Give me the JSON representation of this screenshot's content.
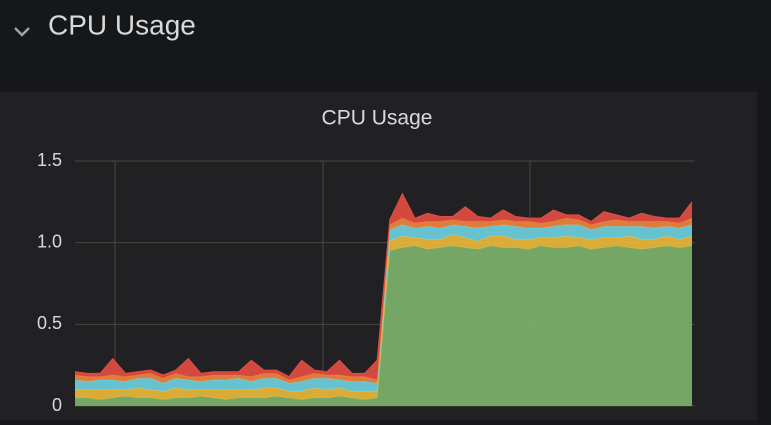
{
  "row": {
    "title": "CPU Usage"
  },
  "chart_data": {
    "type": "stacked-area",
    "title": "CPU Usage",
    "categories": [
      null,
      null,
      null,
      null,
      null,
      null,
      null,
      null,
      null,
      null,
      null,
      null,
      null,
      null,
      null,
      null,
      null,
      null,
      null,
      null,
      null,
      null,
      null,
      null,
      null,
      null,
      null,
      null,
      null,
      null,
      null,
      null,
      null,
      null,
      null,
      null,
      null,
      null,
      null,
      null,
      null,
      null,
      null,
      null,
      null,
      null,
      null,
      null,
      null,
      null
    ],
    "ylim": [
      0,
      1.5
    ],
    "yticks": [
      0,
      0.5,
      {
        "value": 1,
        "label": "1.0"
      },
      1.5
    ],
    "grid": true,
    "series": [
      {
        "color": "#7eb26d",
        "values": [
          0.05,
          0.05,
          0.04,
          0.05,
          0.06,
          0.05,
          0.05,
          0.04,
          0.05,
          0.05,
          0.06,
          0.05,
          0.04,
          0.05,
          0.05,
          0.05,
          0.06,
          0.05,
          0.04,
          0.05,
          0.05,
          0.06,
          0.05,
          0.04,
          0.05,
          0.95,
          0.97,
          0.98,
          0.96,
          0.97,
          0.98,
          0.97,
          0.96,
          0.98,
          0.97,
          0.97,
          0.96,
          0.98,
          0.97,
          0.97,
          0.98,
          0.96,
          0.97,
          0.98,
          0.97,
          0.96,
          0.97,
          0.98,
          0.97,
          0.98
        ]
      },
      {
        "color": "#eab839",
        "values": [
          0.05,
          0.05,
          0.06,
          0.05,
          0.04,
          0.06,
          0.05,
          0.05,
          0.06,
          0.05,
          0.04,
          0.05,
          0.06,
          0.05,
          0.05,
          0.06,
          0.05,
          0.04,
          0.05,
          0.06,
          0.05,
          0.05,
          0.04,
          0.05,
          0.04,
          0.06,
          0.07,
          0.05,
          0.06,
          0.05,
          0.07,
          0.06,
          0.05,
          0.06,
          0.07,
          0.05,
          0.06,
          0.05,
          0.06,
          0.07,
          0.05,
          0.06,
          0.06,
          0.05,
          0.07,
          0.06,
          0.05,
          0.06,
          0.05,
          0.06
        ]
      },
      {
        "color": "#6ed0e0",
        "values": [
          0.06,
          0.05,
          0.06,
          0.06,
          0.05,
          0.06,
          0.07,
          0.05,
          0.06,
          0.06,
          0.05,
          0.06,
          0.06,
          0.07,
          0.05,
          0.06,
          0.06,
          0.05,
          0.06,
          0.06,
          0.07,
          0.05,
          0.06,
          0.06,
          0.05,
          0.07,
          0.07,
          0.06,
          0.08,
          0.07,
          0.06,
          0.07,
          0.08,
          0.06,
          0.07,
          0.08,
          0.07,
          0.06,
          0.07,
          0.07,
          0.08,
          0.06,
          0.07,
          0.07,
          0.06,
          0.08,
          0.07,
          0.06,
          0.07,
          0.07
        ]
      },
      {
        "color": "#ef843c",
        "values": [
          0.03,
          0.03,
          0.02,
          0.03,
          0.03,
          0.02,
          0.03,
          0.03,
          0.03,
          0.02,
          0.03,
          0.03,
          0.03,
          0.02,
          0.03,
          0.03,
          0.03,
          0.02,
          0.03,
          0.03,
          0.02,
          0.03,
          0.03,
          0.03,
          0.02,
          0.03,
          0.04,
          0.03,
          0.03,
          0.04,
          0.03,
          0.03,
          0.04,
          0.03,
          0.03,
          0.03,
          0.04,
          0.03,
          0.03,
          0.04,
          0.03,
          0.03,
          0.03,
          0.04,
          0.03,
          0.03,
          0.04,
          0.03,
          0.03,
          0.04
        ]
      },
      {
        "color": "#e24d42",
        "values": [
          0.02,
          0.02,
          0.02,
          0.1,
          0.02,
          0.02,
          0.02,
          0.02,
          0.02,
          0.11,
          0.02,
          0.02,
          0.02,
          0.02,
          0.1,
          0.02,
          0.02,
          0.02,
          0.1,
          0.02,
          0.02,
          0.09,
          0.02,
          0.02,
          0.12,
          0.03,
          0.15,
          0.03,
          0.05,
          0.03,
          0.02,
          0.09,
          0.03,
          0.02,
          0.06,
          0.03,
          0.02,
          0.03,
          0.07,
          0.02,
          0.03,
          0.02,
          0.06,
          0.03,
          0.02,
          0.05,
          0.03,
          0.02,
          0.03,
          0.1
        ]
      }
    ]
  }
}
